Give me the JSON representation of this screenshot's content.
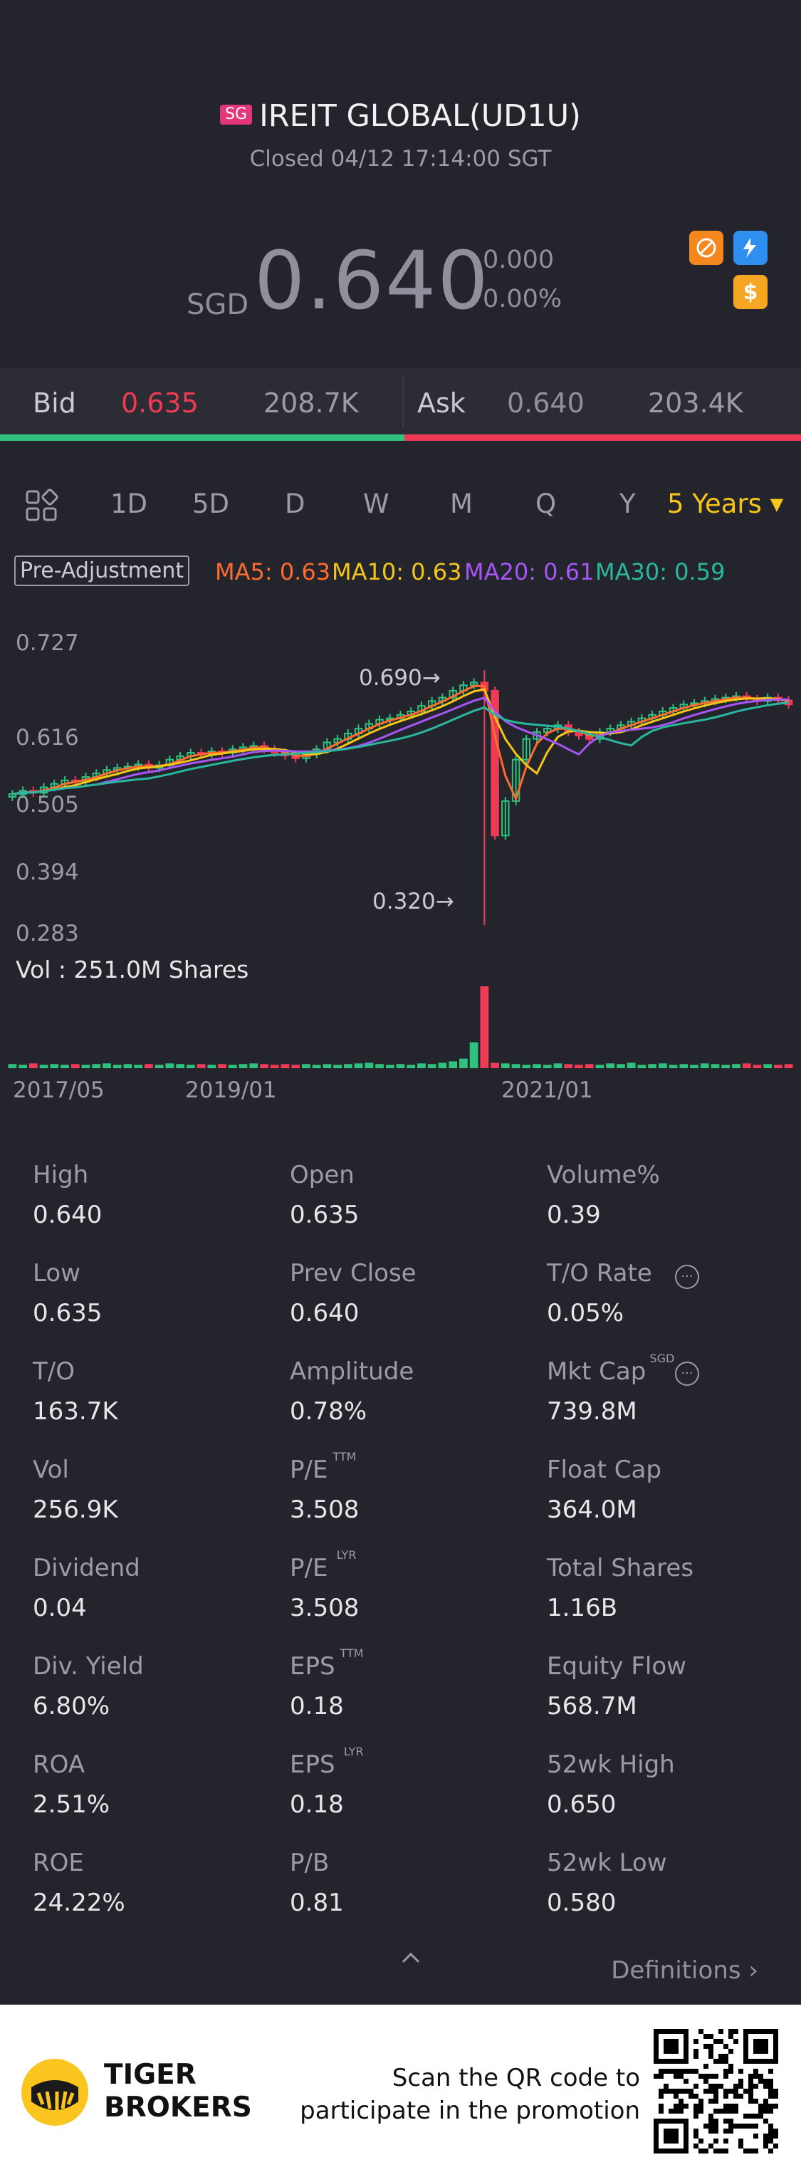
{
  "header": {
    "flag": "SG",
    "title": "IREIT GLOBAL(UD1U)",
    "status": "Closed 04/12 17:14:00 SGT",
    "currency": "SGD",
    "price": "0.640",
    "change": "0.000",
    "change_pct": "0.00%",
    "badges": [
      "no-delay-icon",
      "lightning-1-icon",
      "dollar-icon"
    ]
  },
  "bidask": {
    "bid_label": "Bid",
    "bid_price": "0.635",
    "bid_size": "208.7K",
    "ask_label": "Ask",
    "ask_price": "0.640",
    "ask_size": "203.4K"
  },
  "tabs": {
    "items": [
      "1D",
      "5D",
      "D",
      "W",
      "M",
      "Q",
      "Y"
    ],
    "active": "5 Years"
  },
  "indicators": {
    "pre_adjustment": "Pre-Adjustment",
    "ma5": "MA5: 0.63",
    "ma10": "MA10: 0.63",
    "ma20": "MA20: 0.61",
    "ma30": "MA30: 0.59",
    "colors": {
      "ma5": "#ff6b2c",
      "ma10": "#f5c518",
      "ma20": "#a855f7",
      "ma30": "#2ab7a0"
    }
  },
  "chart_data": {
    "type": "candlestick",
    "y_ticks": [
      "0.727",
      "0.616",
      "0.505",
      "0.394",
      "0.283"
    ],
    "x_ticks": [
      "2017/05",
      "2019/01",
      "2021/01"
    ],
    "high_marker": "0.690",
    "low_marker": "0.320",
    "vol_label": "Vol  : 251.0M Shares",
    "ylim": [
      0.283,
      0.727
    ],
    "close": [
      0.51,
      0.515,
      0.512,
      0.52,
      0.525,
      0.53,
      0.528,
      0.535,
      0.54,
      0.545,
      0.548,
      0.55,
      0.553,
      0.548,
      0.552,
      0.56,
      0.565,
      0.57,
      0.568,
      0.572,
      0.57,
      0.575,
      0.578,
      0.58,
      0.575,
      0.57,
      0.566,
      0.562,
      0.568,
      0.575,
      0.585,
      0.59,
      0.598,
      0.605,
      0.612,
      0.618,
      0.62,
      0.625,
      0.63,
      0.638,
      0.645,
      0.65,
      0.66,
      0.668,
      0.672,
      0.66,
      0.45,
      0.5,
      0.56,
      0.59,
      0.6,
      0.605,
      0.61,
      0.6,
      0.595,
      0.59,
      0.6,
      0.605,
      0.61,
      0.615,
      0.62,
      0.625,
      0.63,
      0.635,
      0.64,
      0.642,
      0.645,
      0.648,
      0.65,
      0.652,
      0.648,
      0.645,
      0.65,
      0.646,
      0.64
    ],
    "volume": [
      6,
      5,
      7,
      5,
      6,
      5,
      6,
      5,
      6,
      7,
      5,
      6,
      5,
      6,
      5,
      7,
      6,
      5,
      6,
      5,
      6,
      5,
      6,
      7,
      6,
      5,
      6,
      5,
      6,
      5,
      6,
      5,
      6,
      7,
      8,
      6,
      5,
      6,
      5,
      7,
      6,
      8,
      10,
      14,
      38,
      120,
      8,
      7,
      6,
      5,
      6,
      5,
      7,
      6,
      5,
      6,
      5,
      7,
      6,
      8,
      5,
      6,
      7,
      5,
      6,
      5,
      7,
      6,
      5,
      6,
      7,
      5,
      6,
      5,
      6
    ]
  },
  "stats": [
    {
      "label": "High",
      "value": "0.640"
    },
    {
      "label": "Open",
      "value": "0.635"
    },
    {
      "label": "Volume%",
      "value": "0.39"
    },
    {
      "label": "Low",
      "value": "0.635"
    },
    {
      "label": "Prev Close",
      "value": "0.640"
    },
    {
      "label": "T/O Rate",
      "value": "0.05%"
    },
    {
      "label": "T/O",
      "value": "163.7K"
    },
    {
      "label": "Amplitude",
      "value": "0.78%"
    },
    {
      "label": "Mkt Cap",
      "value": "739.8M",
      "sup": "SGD"
    },
    {
      "label": "Vol",
      "value": "256.9K"
    },
    {
      "label": "P/E",
      "value": "3.508",
      "sup": "TTM"
    },
    {
      "label": "Float Cap",
      "value": "364.0M"
    },
    {
      "label": "Dividend",
      "value": "0.04"
    },
    {
      "label": "P/E",
      "value": "3.508",
      "sup": "LYR"
    },
    {
      "label": "Total Shares",
      "value": "1.16B"
    },
    {
      "label": "Div. Yield",
      "value": "6.80%"
    },
    {
      "label": "EPS",
      "value": "0.18",
      "sup": "TTM"
    },
    {
      "label": "Equity Flow",
      "value": "568.7M"
    },
    {
      "label": "ROA",
      "value": "2.51%"
    },
    {
      "label": "EPS",
      "value": "0.18",
      "sup": "LYR"
    },
    {
      "label": "52wk High",
      "value": "0.650"
    },
    {
      "label": "ROE",
      "value": "24.22%"
    },
    {
      "label": "P/B",
      "value": "0.81"
    },
    {
      "label": "52wk Low",
      "value": "0.580"
    }
  ],
  "definitions": "Definitions",
  "footer": {
    "brand_line1": "TIGER",
    "brand_line2": "BROKERS",
    "promo_line1": "Scan the QR code to",
    "promo_line2": "participate in the promotion"
  }
}
